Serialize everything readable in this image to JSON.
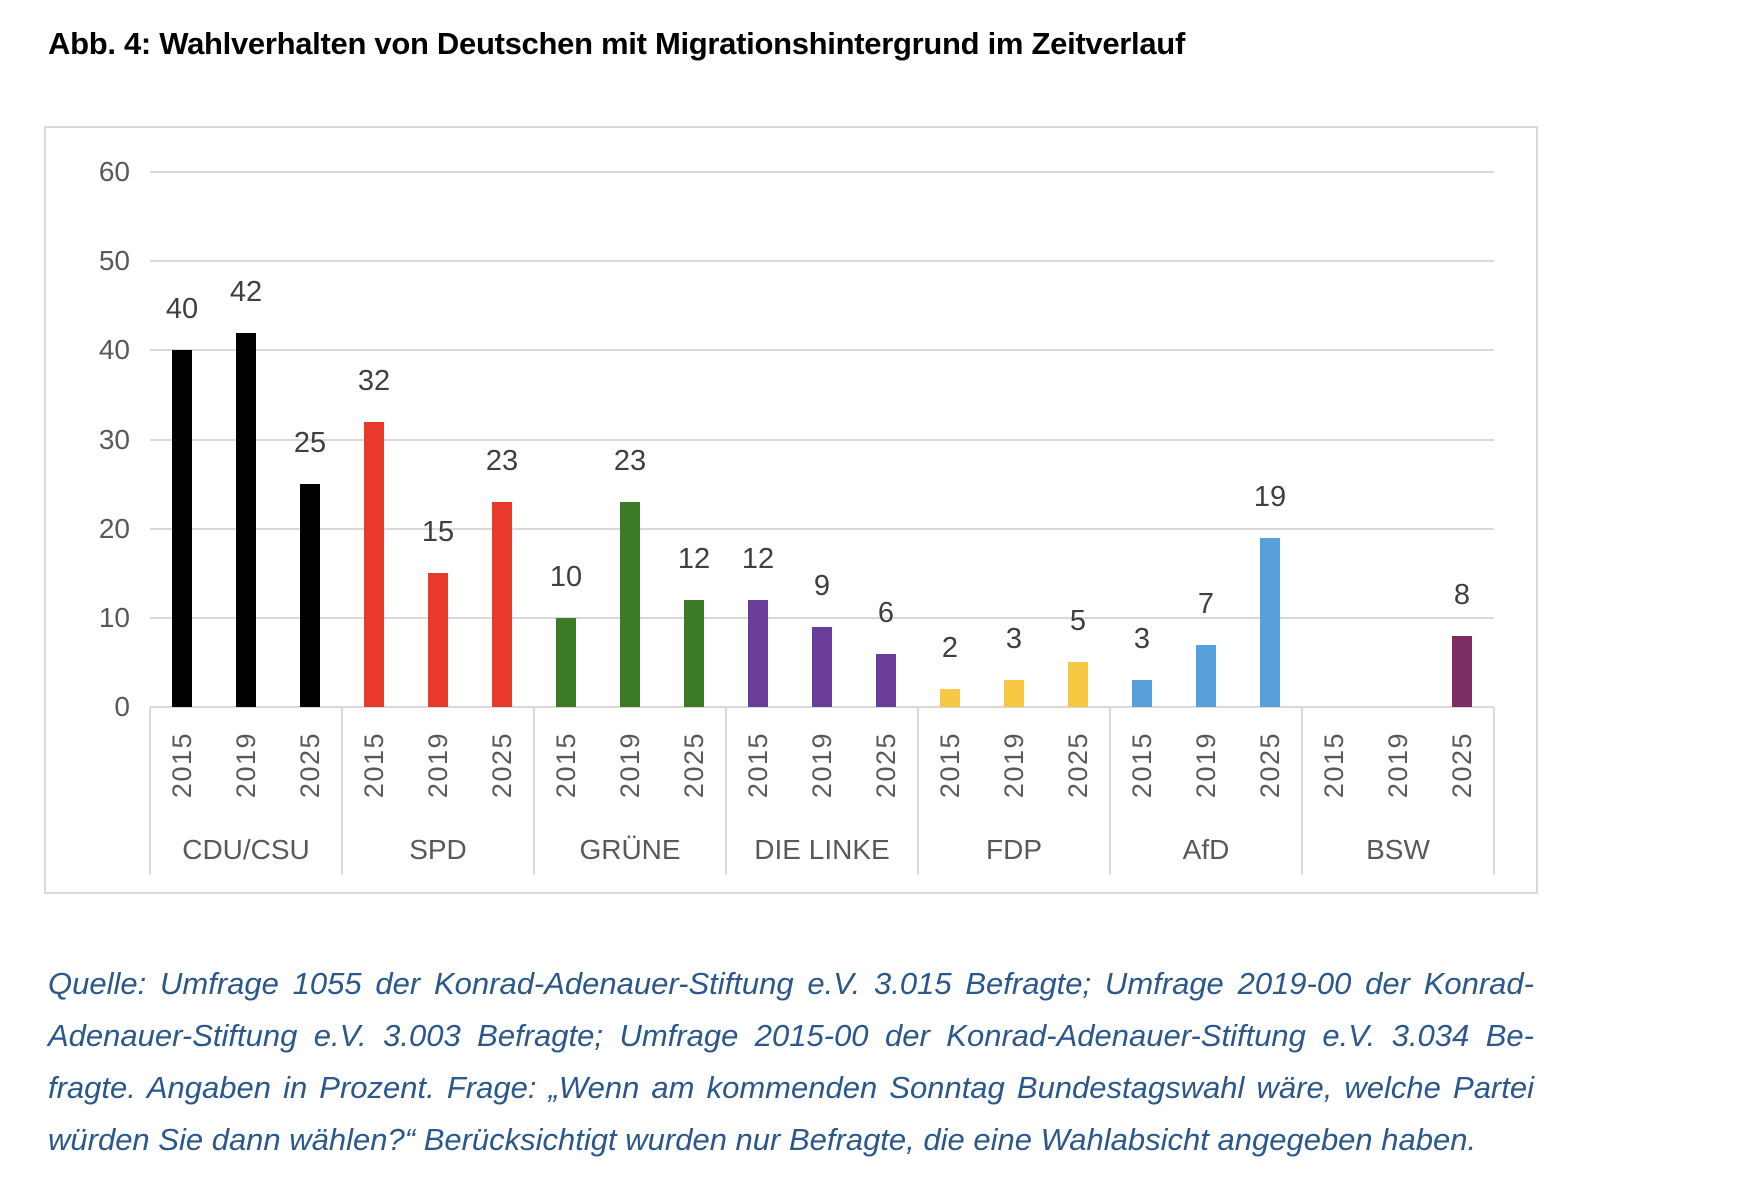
{
  "title": "Abb. 4: Wahlverhalten von Deutschen mit Migrationshintergrund im Zeitverlauf",
  "source_lines": [
    "Quelle: Umfrage 1055 der Konrad-Adenauer-Stiftung e.V. 3.015 Befragte; Umfrage 2019-00 der Konrad-",
    "Adenauer-Stiftung e.V. 3.003 Befragte; Umfrage 2015-00 der Konrad-Adenauer-Stiftung e.V. 3.034 Be-",
    "fragte. Angaben in Prozent. Frage: „Wenn am kommenden Sonntag Bundestagswahl wäre, welche Partei",
    "würden Sie dann wählen?“ Berücksichtigt wurden nur Befragte, die eine Wahlabsicht angegeben haben."
  ],
  "colors": {
    "grid": "#d9d9d9",
    "axis_text": "#595959",
    "data_label_text": "#3f3f3f",
    "source_text": "#2a578c"
  },
  "chart_data": {
    "type": "bar",
    "title": "Abb. 4: Wahlverhalten von Deutschen mit Migrationshintergrund im Zeitverlauf",
    "unit": "Prozent",
    "ylim": [
      0,
      60
    ],
    "yticks": [
      0,
      10,
      20,
      30,
      40,
      50,
      60
    ],
    "grid": true,
    "legend": "none",
    "years": [
      "2015",
      "2019",
      "2025"
    ],
    "groups": [
      {
        "party": "CDU/CSU",
        "color": "#000000",
        "values": [
          40,
          42,
          25
        ]
      },
      {
        "party": "SPD",
        "color": "#e8392b",
        "values": [
          32,
          15,
          23
        ]
      },
      {
        "party": "GRÜNE",
        "color": "#3c7a23",
        "values": [
          10,
          23,
          12
        ]
      },
      {
        "party": "DIE LINKE",
        "color": "#6a3d9b",
        "values": [
          12,
          9,
          6
        ]
      },
      {
        "party": "FDP",
        "color": "#f6c844",
        "values": [
          2,
          3,
          5
        ]
      },
      {
        "party": "AfD",
        "color": "#56a0db",
        "values": [
          3,
          7,
          19
        ]
      },
      {
        "party": "BSW",
        "color": "#7b2c62",
        "values": [
          null,
          null,
          8
        ]
      }
    ]
  }
}
